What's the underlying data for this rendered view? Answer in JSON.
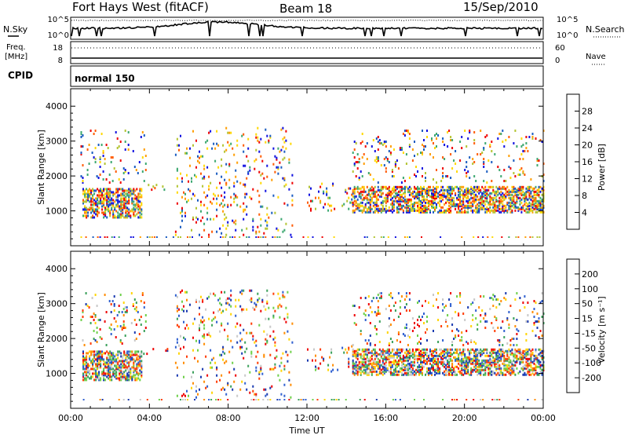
{
  "header": {
    "station": "Fort Hays West (fitACF)",
    "beam": "Beam 18",
    "date": "15/Sep/2010"
  },
  "noise_panel": {
    "left_label": "N.Sky",
    "right_label": "N.Search",
    "y_ticks_left": [
      "10^5",
      "10^0"
    ],
    "y_ticks_right": [
      "10^5",
      "10^0"
    ]
  },
  "freq_panel": {
    "left_label_1": "Freq.",
    "left_label_2": "[MHz]",
    "right_label": "Nave",
    "y_ticks_left": [
      "18",
      "8"
    ],
    "y_ticks_right": [
      "60",
      "0"
    ]
  },
  "cpid_panel": {
    "label": "CPID",
    "value": "normal 150"
  },
  "chart_data": [
    {
      "type": "heatmap",
      "name": "power",
      "ylabel": "Slant Range [km]",
      "yticks": [
        "1000",
        "2000",
        "3000",
        "4000"
      ],
      "ylim": [
        0,
        4500
      ],
      "xlim_hours": [
        0,
        24
      ],
      "colorbar_label": "Power [dB]",
      "colorbar_ticks": [
        "28",
        "24",
        "20",
        "16",
        "12",
        "8",
        "4"
      ],
      "colorbar_colors": [
        "#ee0000",
        "#ff5a00",
        "#ff9d00",
        "#ffd800",
        "#b3c433",
        "#3da870",
        "#1a5cc0",
        "#1010e0"
      ],
      "regions": [
        {
          "x": [
            0.6,
            3.6
          ],
          "y": [
            800,
            1650
          ],
          "dense": true
        },
        {
          "x": [
            3.6,
            5.0
          ],
          "y": [
            1550,
            1750
          ],
          "dense": false
        },
        {
          "x": [
            0.5,
            3.8
          ],
          "y": [
            1800,
            3300
          ],
          "dense": false
        },
        {
          "x": [
            5.3,
            11.3
          ],
          "y": [
            300,
            3400
          ],
          "dense": false
        },
        {
          "x": [
            12.0,
            14.3
          ],
          "y": [
            1000,
            1800
          ],
          "dense": false
        },
        {
          "x": [
            14.3,
            24.0
          ],
          "y": [
            950,
            1700
          ],
          "dense": true
        },
        {
          "x": [
            14.3,
            24.0
          ],
          "y": [
            1800,
            3300
          ],
          "dense": false
        }
      ]
    },
    {
      "type": "heatmap",
      "name": "velocity",
      "ylabel": "Slant Range [km]",
      "yticks": [
        "1000",
        "2000",
        "3000",
        "4000"
      ],
      "ylim": [
        0,
        4500
      ],
      "xlim_hours": [
        0,
        24
      ],
      "colorbar_label": "Velocity [m s⁻¹]",
      "colorbar_ticks": [
        "200",
        "100",
        "50",
        "15",
        "-15",
        "-50",
        "-100",
        "-200"
      ],
      "colorbar_colors": [
        "#1a3ab0",
        "#3060d0",
        "#3aa05a",
        "#6ed04a",
        "#c8c8c8",
        "#ffd400",
        "#ff8c00",
        "#ff3a00",
        "#ee0000"
      ],
      "regions": [
        {
          "x": [
            0.6,
            3.6
          ],
          "y": [
            800,
            1650
          ],
          "dense": true
        },
        {
          "x": [
            3.6,
            5.0
          ],
          "y": [
            1550,
            1750
          ],
          "dense": false
        },
        {
          "x": [
            0.5,
            3.8
          ],
          "y": [
            1800,
            3300
          ],
          "dense": false
        },
        {
          "x": [
            5.3,
            11.3
          ],
          "y": [
            300,
            3400
          ],
          "dense": false
        },
        {
          "x": [
            12.0,
            14.3
          ],
          "y": [
            1000,
            1800
          ],
          "dense": false
        },
        {
          "x": [
            14.3,
            24.0
          ],
          "y": [
            950,
            1700
          ],
          "dense": true
        },
        {
          "x": [
            14.3,
            24.0
          ],
          "y": [
            1800,
            3300
          ],
          "dense": false
        }
      ]
    }
  ],
  "x_axis": {
    "ticks": [
      "00:00",
      "04:00",
      "08:00",
      "12:00",
      "16:00",
      "20:00",
      "00:00"
    ],
    "label": "Time UT"
  }
}
